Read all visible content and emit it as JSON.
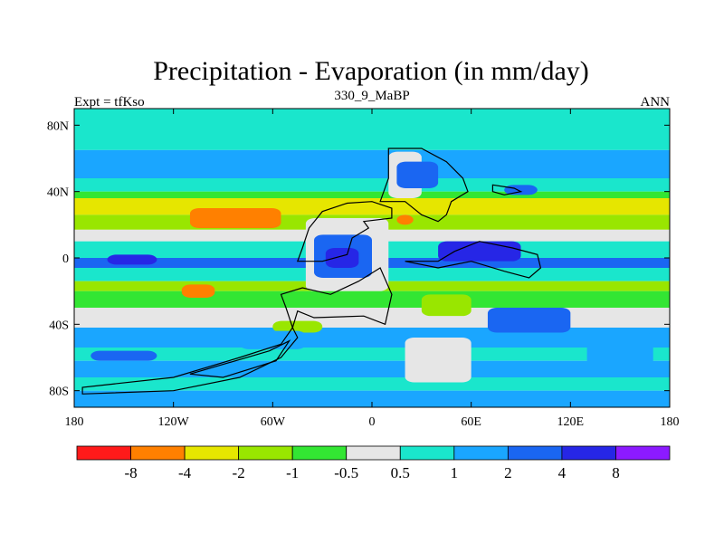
{
  "chart_data": {
    "type": "heatmap",
    "title": "Precipitation - Evaporation (in mm/day)",
    "subtitle_left": "Expt = tfKso",
    "subtitle_center": "330_9_MaBP",
    "subtitle_right": "ANN",
    "x_ticks": [
      "180",
      "120W",
      "60W",
      "0",
      "60E",
      "120E",
      "180"
    ],
    "x_tick_values": [
      -180,
      -120,
      -60,
      0,
      60,
      120,
      180
    ],
    "y_ticks": [
      "80N",
      "40N",
      "0",
      "40S",
      "80S"
    ],
    "y_tick_values": [
      80,
      40,
      0,
      -40,
      -80
    ],
    "xlim": [
      -180,
      180
    ],
    "ylim": [
      -90,
      90
    ],
    "colorbar": {
      "colors": [
        "#ff1a1a",
        "#ff8000",
        "#e6e600",
        "#99e600",
        "#33e633",
        "#e6e6e6",
        "#1ae6cc",
        "#1aa6ff",
        "#1a66f2",
        "#2626e6",
        "#8c1aff"
      ],
      "labels": [
        "-8",
        "-4",
        "-2",
        "-1",
        "-0.5",
        "0.5",
        "1",
        "2",
        "4",
        "8"
      ]
    },
    "zonal_bands": [
      {
        "lat": [
          65,
          90
        ],
        "class": 6
      },
      {
        "lat": [
          48,
          65
        ],
        "class": 7
      },
      {
        "lat": [
          40,
          48
        ],
        "class": 6
      },
      {
        "lat": [
          36,
          40
        ],
        "class": 4
      },
      {
        "lat": [
          26,
          36
        ],
        "class": 2
      },
      {
        "lat": [
          17,
          26
        ],
        "class": 3
      },
      {
        "lat": [
          10,
          17
        ],
        "class": 5
      },
      {
        "lat": [
          0,
          10
        ],
        "class": 6
      },
      {
        "lat": [
          -6,
          0
        ],
        "class": 8
      },
      {
        "lat": [
          -14,
          -6
        ],
        "class": 6
      },
      {
        "lat": [
          -20,
          -14
        ],
        "class": 3
      },
      {
        "lat": [
          -30,
          -20
        ],
        "class": 4
      },
      {
        "lat": [
          -42,
          -30
        ],
        "class": 5
      },
      {
        "lat": [
          -54,
          -42
        ],
        "class": 7
      },
      {
        "lat": [
          -62,
          -54
        ],
        "class": 6
      },
      {
        "lat": [
          -72,
          -62
        ],
        "class": 7
      },
      {
        "lat": [
          -80,
          -72
        ],
        "class": 6
      },
      {
        "lat": [
          -90,
          -80
        ],
        "class": 7
      }
    ],
    "patches": [
      {
        "lon": [
          -160,
          -130
        ],
        "lat": [
          -4,
          2
        ],
        "class": 9
      },
      {
        "lon": [
          -110,
          -55
        ],
        "lat": [
          18,
          30
        ],
        "class": 1
      },
      {
        "lon": [
          -115,
          -95
        ],
        "lat": [
          -24,
          -16
        ],
        "class": 1
      },
      {
        "lon": [
          15,
          25
        ],
        "lat": [
          20,
          26
        ],
        "class": 1
      },
      {
        "lon": [
          -40,
          10
        ],
        "lat": [
          -20,
          24
        ],
        "class": 5
      },
      {
        "lon": [
          -35,
          0
        ],
        "lat": [
          -12,
          14
        ],
        "class": 8
      },
      {
        "lon": [
          -28,
          -8
        ],
        "lat": [
          -6,
          6
        ],
        "class": 9
      },
      {
        "lon": [
          10,
          30
        ],
        "lat": [
          36,
          64
        ],
        "class": 5
      },
      {
        "lon": [
          15,
          40
        ],
        "lat": [
          42,
          58
        ],
        "class": 8
      },
      {
        "lon": [
          80,
          100
        ],
        "lat": [
          38,
          44
        ],
        "class": 8
      },
      {
        "lon": [
          40,
          90
        ],
        "lat": [
          -2,
          10
        ],
        "class": 9
      },
      {
        "lon": [
          30,
          60
        ],
        "lat": [
          -35,
          -22
        ],
        "class": 3
      },
      {
        "lon": [
          70,
          120
        ],
        "lat": [
          -45,
          -30
        ],
        "class": 8
      },
      {
        "lon": [
          -60,
          -30
        ],
        "lat": [
          -45,
          -38
        ],
        "class": 3
      },
      {
        "lon": [
          -80,
          -40
        ],
        "lat": [
          -55,
          -44
        ],
        "class": 7
      },
      {
        "lon": [
          20,
          60
        ],
        "lat": [
          -75,
          -48
        ],
        "class": 5
      },
      {
        "lon": [
          130,
          170
        ],
        "lat": [
          -65,
          -45
        ],
        "class": 7
      },
      {
        "lon": [
          -170,
          -130
        ],
        "lat": [
          -62,
          -56
        ],
        "class": 8
      }
    ],
    "coastlines": [
      [
        [
          -42,
          6
        ],
        [
          -38,
          18
        ],
        [
          -30,
          28
        ],
        [
          -15,
          33
        ],
        [
          0,
          34
        ],
        [
          12,
          30
        ],
        [
          12,
          24
        ],
        [
          -5,
          22
        ],
        [
          -2,
          18
        ],
        [
          -12,
          12
        ],
        [
          -15,
          2
        ],
        [
          -30,
          -2
        ],
        [
          -45,
          -2
        ],
        [
          -42,
          6
        ]
      ],
      [
        [
          -55,
          -22
        ],
        [
          -42,
          -18
        ],
        [
          -25,
          -22
        ],
        [
          -8,
          -14
        ],
        [
          5,
          -6
        ],
        [
          12,
          -22
        ],
        [
          8,
          -40
        ],
        [
          -5,
          -35
        ],
        [
          -35,
          -36
        ],
        [
          -45,
          -32
        ],
        [
          -48,
          -42
        ],
        [
          -52,
          -30
        ],
        [
          -55,
          -22
        ]
      ],
      [
        [
          5,
          34
        ],
        [
          10,
          48
        ],
        [
          10,
          66
        ],
        [
          30,
          66
        ],
        [
          45,
          58
        ],
        [
          55,
          48
        ],
        [
          58,
          40
        ],
        [
          48,
          34
        ],
        [
          45,
          26
        ],
        [
          40,
          22
        ],
        [
          30,
          26
        ],
        [
          20,
          34
        ],
        [
          5,
          34
        ]
      ],
      [
        [
          20,
          -2
        ],
        [
          40,
          -2
        ],
        [
          50,
          4
        ],
        [
          65,
          10
        ],
        [
          85,
          6
        ],
        [
          100,
          2
        ],
        [
          102,
          -6
        ],
        [
          95,
          -12
        ],
        [
          80,
          -8
        ],
        [
          60,
          -2
        ],
        [
          40,
          -6
        ],
        [
          20,
          -2
        ]
      ],
      [
        [
          73,
          44
        ],
        [
          86,
          42
        ],
        [
          90,
          40
        ],
        [
          80,
          38
        ],
        [
          73,
          40
        ],
        [
          73,
          44
        ]
      ],
      [
        [
          -48,
          -42
        ],
        [
          -55,
          -52
        ],
        [
          -80,
          -60
        ],
        [
          -120,
          -72
        ],
        [
          -175,
          -78
        ],
        [
          -175,
          -82
        ],
        [
          -120,
          -80
        ],
        [
          -80,
          -72
        ],
        [
          -55,
          -60
        ],
        [
          -45,
          -48
        ],
        [
          -48,
          -42
        ]
      ],
      [
        [
          -50,
          -50
        ],
        [
          -62,
          -56
        ],
        [
          -110,
          -70
        ],
        [
          -90,
          -72
        ],
        [
          -58,
          -62
        ],
        [
          -50,
          -50
        ]
      ]
    ]
  }
}
